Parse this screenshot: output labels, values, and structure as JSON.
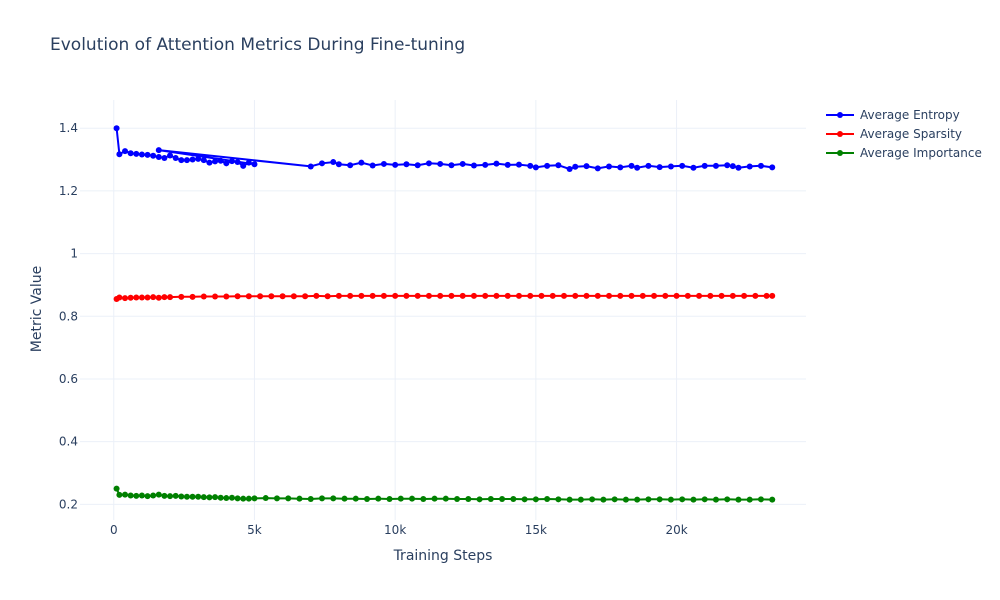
{
  "chart_data": {
    "type": "line",
    "title": "Evolution of Attention Metrics During Fine-tuning",
    "xlabel": "Training Steps",
    "ylabel": "Metric Value",
    "xlim": [
      -1200,
      24600
    ],
    "ylim": [
      0.15,
      1.49
    ],
    "x_ticks": [
      0,
      5000,
      10000,
      15000,
      20000
    ],
    "x_tick_labels": [
      "0",
      "5k",
      "10k",
      "15k",
      "20k"
    ],
    "y_ticks": [
      0.2,
      0.4,
      0.6,
      0.8,
      1.0,
      1.2,
      1.4
    ],
    "y_tick_labels": [
      "0.2",
      "0.4",
      "0.6",
      "0.8",
      "1",
      "1.2",
      "1.4"
    ],
    "grid": true,
    "legend_position": "top-right",
    "series": [
      {
        "name": "Average Entropy",
        "color": "#0000ff",
        "x": [
          100,
          200,
          400,
          600,
          800,
          1000,
          1200,
          1400,
          1600,
          1800,
          2000,
          2200,
          2400,
          2600,
          2800,
          3000,
          3200,
          3400,
          3600,
          3800,
          4000,
          4200,
          4400,
          4600,
          4800,
          5000,
          1600,
          7000,
          7400,
          7800,
          8000,
          8400,
          8800,
          9200,
          9600,
          10000,
          10400,
          10800,
          11200,
          11600,
          12000,
          12400,
          12800,
          13200,
          13600,
          14000,
          14400,
          14800,
          15000,
          15400,
          15800,
          16200,
          16400,
          16800,
          17200,
          17600,
          18000,
          18400,
          18600,
          19000,
          19400,
          19800,
          20200,
          20600,
          21000,
          21400,
          21800,
          22000,
          22200,
          22600,
          23000,
          23400
        ],
        "values": [
          1.4,
          1.317,
          1.327,
          1.32,
          1.318,
          1.316,
          1.315,
          1.312,
          1.308,
          1.305,
          1.313,
          1.305,
          1.298,
          1.298,
          1.3,
          1.302,
          1.298,
          1.29,
          1.294,
          1.296,
          1.288,
          1.295,
          1.292,
          1.28,
          1.29,
          1.285,
          1.33,
          1.278,
          1.288,
          1.292,
          1.285,
          1.282,
          1.29,
          1.281,
          1.286,
          1.283,
          1.285,
          1.282,
          1.288,
          1.286,
          1.282,
          1.286,
          1.281,
          1.283,
          1.287,
          1.283,
          1.284,
          1.28,
          1.275,
          1.28,
          1.282,
          1.27,
          1.277,
          1.279,
          1.272,
          1.278,
          1.275,
          1.28,
          1.274,
          1.28,
          1.276,
          1.278,
          1.28,
          1.274,
          1.28,
          1.28,
          1.282,
          1.279,
          1.274,
          1.278,
          1.28,
          1.275
        ]
      },
      {
        "name": "Average Sparsity",
        "color": "#ff0000",
        "x": [
          100,
          200,
          400,
          600,
          800,
          1000,
          1200,
          1400,
          1600,
          1800,
          2000,
          2400,
          2800,
          3200,
          3600,
          4000,
          4400,
          4800,
          5200,
          5600,
          6000,
          6400,
          6800,
          7200,
          7600,
          8000,
          8400,
          8800,
          9200,
          9600,
          10000,
          10400,
          10800,
          11200,
          11600,
          12000,
          12400,
          12800,
          13200,
          13600,
          14000,
          14400,
          14800,
          15200,
          15600,
          16000,
          16400,
          16800,
          17200,
          17600,
          18000,
          18400,
          18800,
          19200,
          19600,
          20000,
          20400,
          20800,
          21200,
          21600,
          22000,
          22400,
          22800,
          23200,
          23400
        ],
        "values": [
          0.855,
          0.86,
          0.858,
          0.859,
          0.86,
          0.86,
          0.86,
          0.861,
          0.859,
          0.861,
          0.861,
          0.862,
          0.862,
          0.863,
          0.863,
          0.863,
          0.864,
          0.864,
          0.864,
          0.864,
          0.864,
          0.864,
          0.864,
          0.865,
          0.864,
          0.865,
          0.865,
          0.865,
          0.865,
          0.865,
          0.865,
          0.865,
          0.865,
          0.865,
          0.865,
          0.865,
          0.865,
          0.865,
          0.865,
          0.865,
          0.865,
          0.865,
          0.865,
          0.865,
          0.865,
          0.865,
          0.865,
          0.865,
          0.865,
          0.865,
          0.865,
          0.865,
          0.865,
          0.865,
          0.865,
          0.865,
          0.865,
          0.865,
          0.865,
          0.865,
          0.865,
          0.865,
          0.865,
          0.865,
          0.865
        ]
      },
      {
        "name": "Average Importance",
        "color": "#008000",
        "x": [
          100,
          200,
          400,
          600,
          800,
          1000,
          1200,
          1400,
          1600,
          1800,
          2000,
          2200,
          2400,
          2600,
          2800,
          3000,
          3200,
          3400,
          3600,
          3800,
          4000,
          4200,
          4400,
          4600,
          4800,
          5000,
          5400,
          5800,
          6200,
          6600,
          7000,
          7400,
          7800,
          8200,
          8600,
          9000,
          9400,
          9800,
          10200,
          10600,
          11000,
          11400,
          11800,
          12200,
          12600,
          13000,
          13400,
          13800,
          14200,
          14600,
          15000,
          15400,
          15800,
          16200,
          16600,
          17000,
          17400,
          17800,
          18200,
          18600,
          19000,
          19400,
          19800,
          20200,
          20600,
          21000,
          21400,
          21800,
          22200,
          22600,
          23000,
          23400
        ],
        "values": [
          0.25,
          0.23,
          0.231,
          0.228,
          0.227,
          0.228,
          0.226,
          0.228,
          0.231,
          0.227,
          0.226,
          0.227,
          0.225,
          0.224,
          0.224,
          0.224,
          0.223,
          0.222,
          0.223,
          0.221,
          0.22,
          0.221,
          0.219,
          0.218,
          0.218,
          0.219,
          0.22,
          0.219,
          0.219,
          0.218,
          0.217,
          0.219,
          0.219,
          0.218,
          0.218,
          0.217,
          0.218,
          0.217,
          0.218,
          0.218,
          0.217,
          0.218,
          0.218,
          0.217,
          0.217,
          0.216,
          0.217,
          0.217,
          0.217,
          0.216,
          0.216,
          0.217,
          0.216,
          0.215,
          0.215,
          0.216,
          0.215,
          0.216,
          0.215,
          0.215,
          0.216,
          0.216,
          0.215,
          0.216,
          0.215,
          0.216,
          0.215,
          0.216,
          0.215,
          0.215,
          0.216,
          0.215
        ]
      }
    ]
  }
}
